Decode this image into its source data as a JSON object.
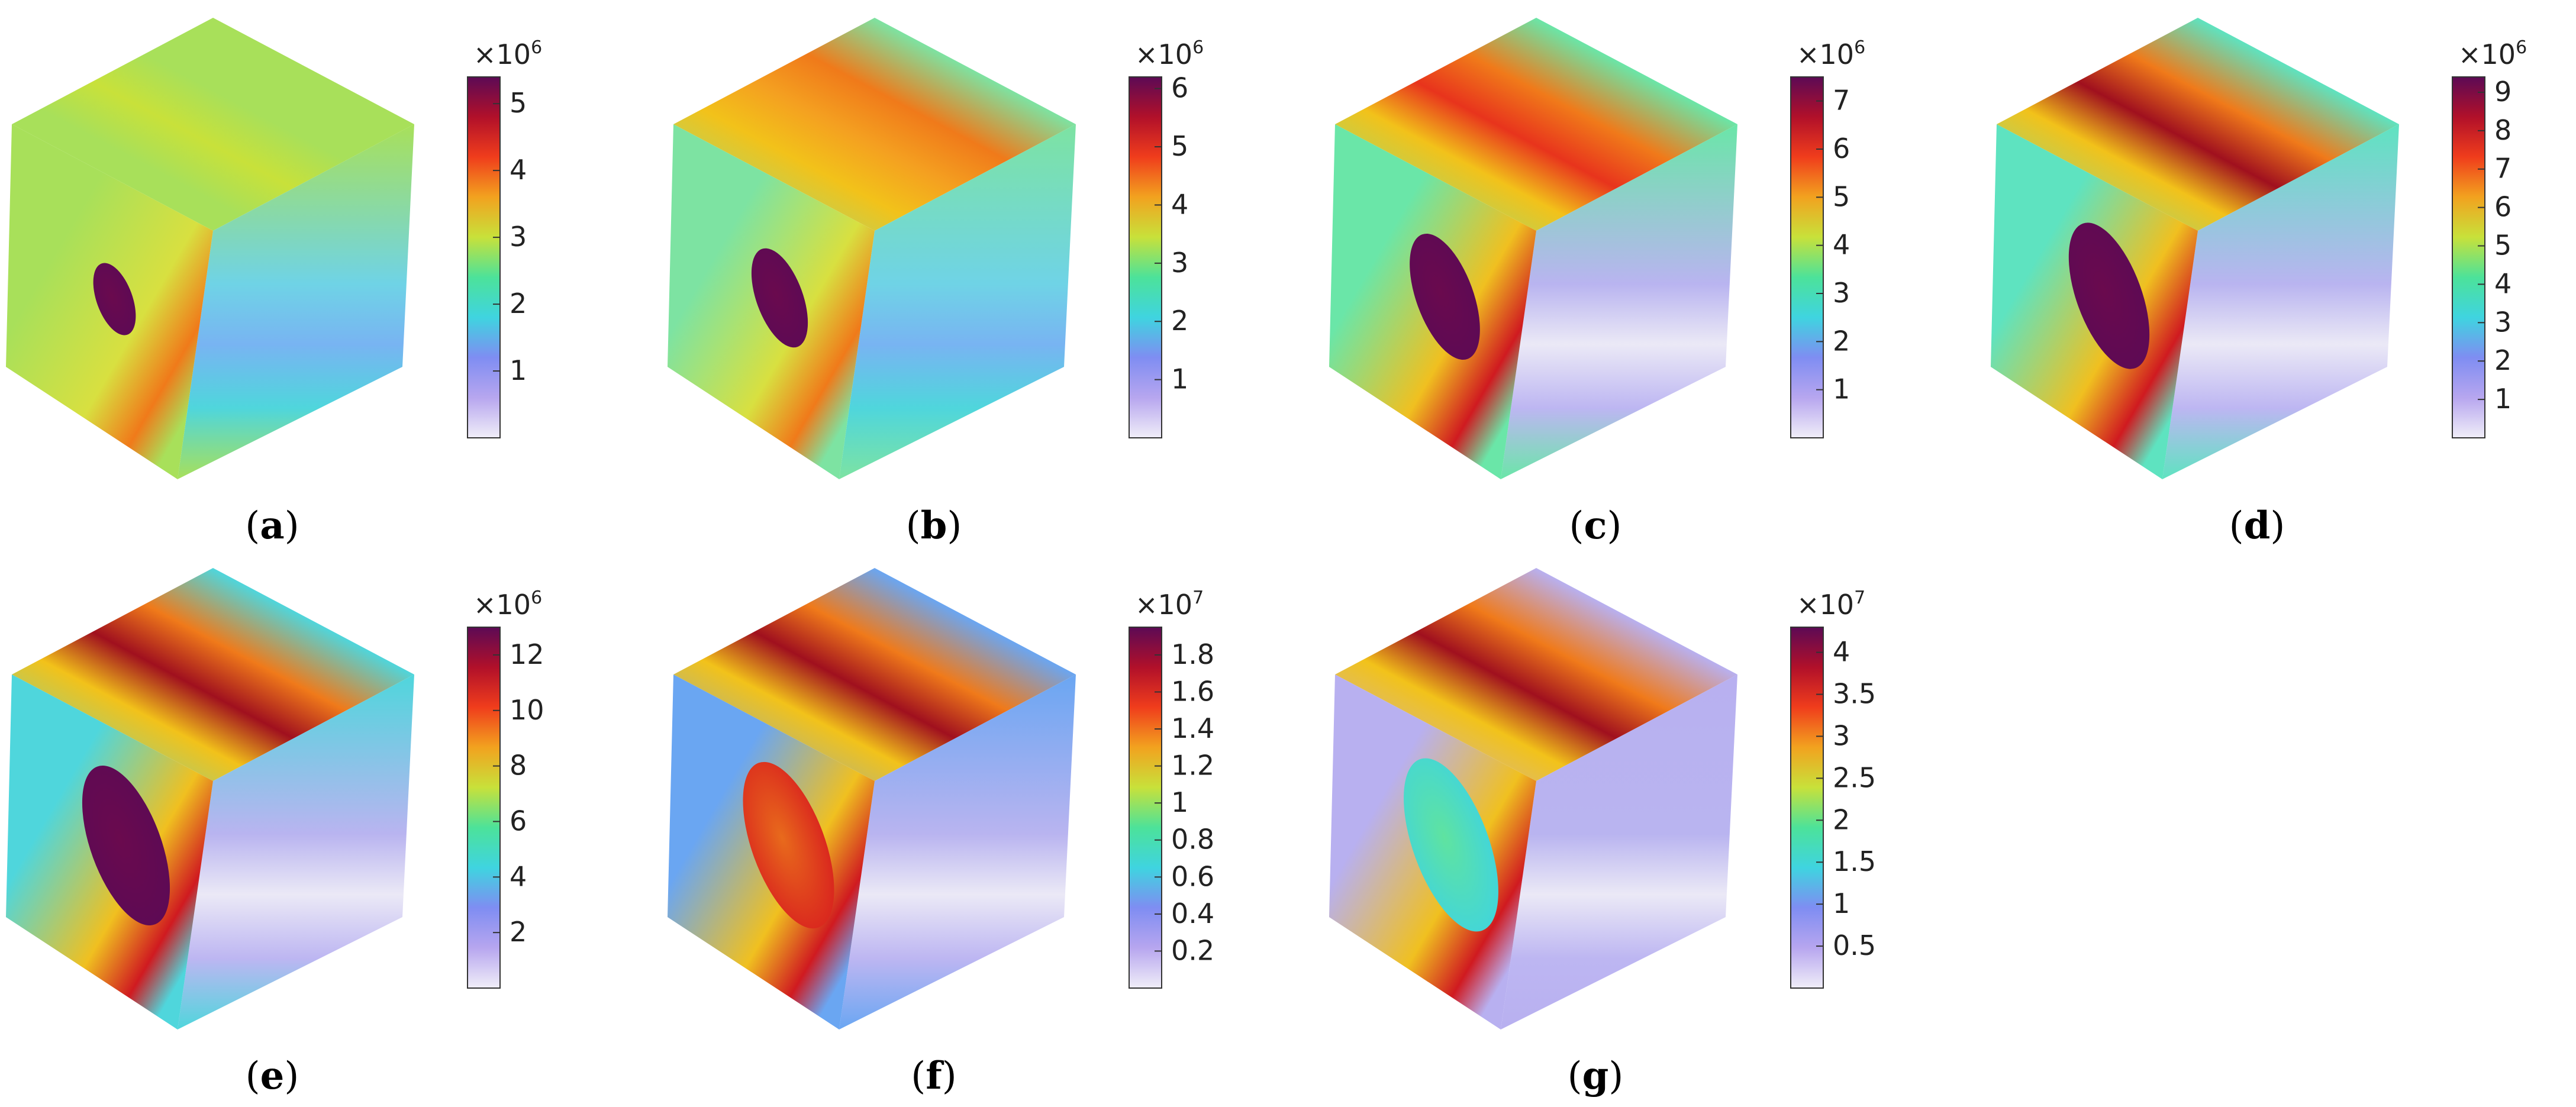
{
  "figure": {
    "panels": [
      {
        "id": "a",
        "caption_letter": "a",
        "multiplier_base": "×10",
        "multiplier_exp": "6",
        "ticks": [
          "1",
          "2",
          "3",
          "4",
          "5"
        ],
        "ticks_value": [
          1,
          2,
          3,
          4,
          5
        ],
        "cbar_min": 0,
        "cbar_max": 5.4,
        "hole_scale": 0.45,
        "band_strength": 0.15,
        "face_base": "#a8e05a"
      },
      {
        "id": "b",
        "caption_letter": "b",
        "multiplier_base": "×10",
        "multiplier_exp": "6",
        "ticks": [
          "1",
          "2",
          "3",
          "4",
          "5",
          "6"
        ],
        "ticks_value": [
          1,
          2,
          3,
          4,
          5,
          6
        ],
        "cbar_min": 0,
        "cbar_max": 6.2,
        "hole_scale": 0.65,
        "band_strength": 0.45,
        "face_base": "#7de3a2"
      },
      {
        "id": "c",
        "caption_letter": "c",
        "multiplier_base": "×10",
        "multiplier_exp": "6",
        "ticks": [
          "1",
          "2",
          "3",
          "4",
          "5",
          "6",
          "7"
        ],
        "ticks_value": [
          1,
          2,
          3,
          4,
          5,
          6,
          7
        ],
        "cbar_min": 0,
        "cbar_max": 7.5,
        "hole_scale": 0.85,
        "band_strength": 0.7,
        "face_base": "#6ae6a8"
      },
      {
        "id": "d",
        "caption_letter": "d",
        "multiplier_base": "×10",
        "multiplier_exp": "6",
        "ticks": [
          "1",
          "2",
          "3",
          "4",
          "5",
          "6",
          "7",
          "8",
          "9"
        ],
        "ticks_value": [
          1,
          2,
          3,
          4,
          5,
          6,
          7,
          8,
          9
        ],
        "cbar_min": 0,
        "cbar_max": 9.4,
        "hole_scale": 1.0,
        "band_strength": 0.85,
        "face_base": "#5ee3c0"
      },
      {
        "id": "e",
        "caption_letter": "e",
        "multiplier_base": "×10",
        "multiplier_exp": "6",
        "ticks": [
          "2",
          "4",
          "6",
          "8",
          "10",
          "12"
        ],
        "ticks_value": [
          2,
          4,
          6,
          8,
          10,
          12
        ],
        "cbar_min": 0,
        "cbar_max": 13,
        "hole_scale": 1.1,
        "band_strength": 0.95,
        "face_base": "#4fd6dc"
      },
      {
        "id": "f",
        "caption_letter": "f",
        "multiplier_base": "×10",
        "multiplier_exp": "7",
        "ticks": [
          "0.2",
          "0.4",
          "0.6",
          "0.8",
          "1",
          "1.2",
          "1.4",
          "1.6",
          "1.8"
        ],
        "ticks_value": [
          0.2,
          0.4,
          0.6,
          0.8,
          1.0,
          1.2,
          1.4,
          1.6,
          1.8
        ],
        "cbar_min": 0,
        "cbar_max": 1.95,
        "hole_scale": 1.15,
        "band_strength": 1.0,
        "face_base": "#6aa6f2"
      },
      {
        "id": "g",
        "caption_letter": "g",
        "multiplier_base": "×10",
        "multiplier_exp": "7",
        "ticks": [
          "0.5",
          "1",
          "1.5",
          "2",
          "2.5",
          "3",
          "3.5",
          "4"
        ],
        "ticks_value": [
          0.5,
          1,
          1.5,
          2,
          2.5,
          3,
          3.5,
          4
        ],
        "cbar_min": 0,
        "cbar_max": 4.3,
        "hole_scale": 1.2,
        "band_strength": 1.0,
        "face_base": "#b8b0f0"
      }
    ],
    "colormap": [
      "#f0eef8",
      "#b7a6ef",
      "#7f8df2",
      "#3fd4e0",
      "#4ce29a",
      "#c8e13a",
      "#f2a21f",
      "#f03d1c",
      "#b1102a",
      "#5c0a55"
    ]
  }
}
